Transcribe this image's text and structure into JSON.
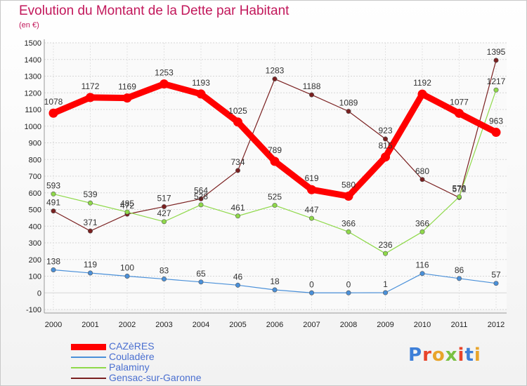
{
  "title": "Evolution du Montant de la Dette par Habitant",
  "unit": "(en €)",
  "brand": "Proxiti",
  "chart_data": {
    "type": "line",
    "title": "Evolution du Montant de la Dette par Habitant",
    "subtitle": "(en €)",
    "x": [
      "2000",
      "2001",
      "2002",
      "2003",
      "2004",
      "2005",
      "2006",
      "2007",
      "2008",
      "2009",
      "2010",
      "2011",
      "2012"
    ],
    "ylim": [
      -100,
      1500
    ],
    "yticks": [
      -100,
      0,
      100,
      200,
      300,
      400,
      500,
      600,
      700,
      800,
      900,
      1000,
      1100,
      1200,
      1300,
      1400,
      1500
    ],
    "grid": true,
    "legend_position": "bottom-left",
    "series": [
      {
        "name": "CAZèRES",
        "color": "#ff0000",
        "values": [
          1078,
          1172,
          1169,
          1253,
          1193,
          1025,
          789,
          619,
          580,
          815,
          1192,
          1077,
          963
        ]
      },
      {
        "name": "Couladère",
        "color": "#4a90d9",
        "values": [
          138,
          119,
          100,
          83,
          65,
          46,
          18,
          0,
          0,
          1,
          116,
          86,
          57
        ]
      },
      {
        "name": "Palaminy",
        "color": "#8fd94a",
        "values": [
          593,
          539,
          485,
          427,
          528,
          461,
          525,
          447,
          366,
          236,
          366,
          576,
          1217
        ]
      },
      {
        "name": "Gensac-sur-Garonne",
        "color": "#7a2020",
        "values": [
          491,
          371,
          472,
          517,
          564,
          734,
          1283,
          1188,
          1089,
          923,
          680,
          572,
          1395
        ]
      }
    ]
  }
}
